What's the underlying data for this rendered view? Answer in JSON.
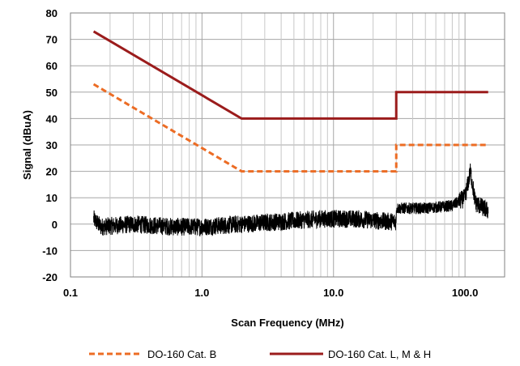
{
  "chart_data": {
    "type": "line",
    "title": "",
    "xlabel": "Scan Frequency (MHz)",
    "ylabel": "Signal (dBuA)",
    "x_scale": "log",
    "xlim": [
      0.1,
      200
    ],
    "ylim": [
      -20,
      80
    ],
    "grid": true,
    "legend_position": "bottom",
    "x_ticks": [
      "0.1",
      "1.0",
      "10.0",
      "100.0"
    ],
    "y_ticks": [
      "-20",
      "-10",
      "0",
      "10",
      "20",
      "30",
      "40",
      "50",
      "60",
      "70",
      "80"
    ],
    "series": [
      {
        "name": "DO-160  Cat. B",
        "style": "dashed",
        "color": "#ec6c24",
        "x": [
          0.15,
          2.0,
          30.0,
          30.0,
          150.0
        ],
        "y": [
          53,
          20,
          20,
          30,
          30
        ]
      },
      {
        "name": "DO-160  Cat. L, M & H",
        "style": "solid",
        "color": "#9b1c1c",
        "x": [
          0.15,
          2.0,
          30.0,
          30.0,
          150.0
        ],
        "y": [
          73,
          40,
          40,
          50,
          50
        ]
      },
      {
        "name": "",
        "style": "noise",
        "color": "#000000",
        "x": [
          0.15,
          0.17,
          0.3,
          0.6,
          1.0,
          2.0,
          4.0,
          8.0,
          15.0,
          25.0,
          30.0,
          30.0,
          50.0,
          80.0,
          100.0,
          110.0,
          120.0,
          150.0
        ],
        "y": [
          2,
          -1,
          0,
          -1,
          -1,
          0,
          1,
          2,
          2,
          1,
          1,
          6,
          6,
          7,
          10,
          20,
          8,
          5
        ]
      }
    ]
  }
}
